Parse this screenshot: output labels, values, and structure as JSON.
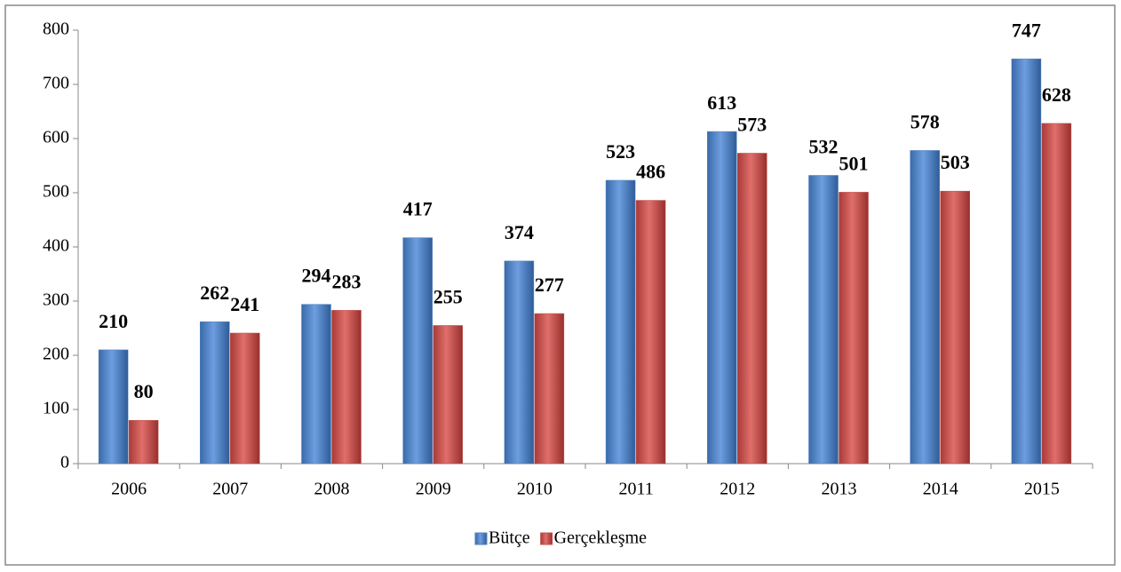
{
  "chart_data": {
    "type": "bar",
    "categories": [
      "2006",
      "2007",
      "2008",
      "2009",
      "2010",
      "2011",
      "2012",
      "2013",
      "2014",
      "2015"
    ],
    "series": [
      {
        "name": "Bütçe",
        "color": "#4f81bd",
        "values": [
          210,
          262,
          294,
          417,
          374,
          523,
          613,
          532,
          578,
          747
        ]
      },
      {
        "name": "Gerçekleşme",
        "color": "#c0504d",
        "values": [
          80,
          241,
          283,
          255,
          277,
          486,
          573,
          501,
          503,
          628
        ]
      }
    ],
    "ylim": [
      0,
      800
    ],
    "yticks": [
      0,
      100,
      200,
      300,
      400,
      500,
      600,
      700,
      800
    ],
    "grid": false,
    "legend": "bottom"
  }
}
